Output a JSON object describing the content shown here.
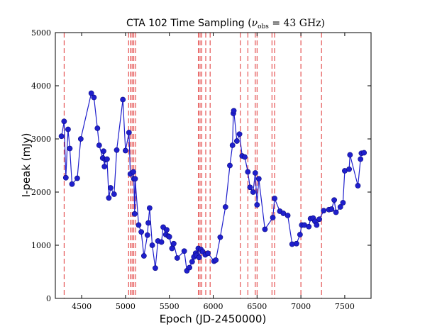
{
  "chart_data": {
    "type": "line",
    "title_prefix": "CTA 102 Time Sampling (",
    "title_symbol": "ν",
    "title_sub": "obs",
    "title_suffix": " = 43 GHz)",
    "xlabel": "Epoch (JD-2450000)",
    "ylabel": "I-peak (mJy)",
    "xlim": [
      4200,
      7800
    ],
    "ylim": [
      0,
      5000
    ],
    "xticks": [
      4500,
      5000,
      5500,
      6000,
      6500,
      7000,
      7500
    ],
    "yticks": [
      0,
      1000,
      2000,
      3000,
      4000,
      5000
    ],
    "grid": false,
    "series_color": "#1f1fcc",
    "vline_color": "#e03030",
    "vlines": [
      4300,
      5035,
      5055,
      5075,
      5095,
      5115,
      5830,
      5850,
      5870,
      5915,
      5965,
      6310,
      6395,
      6480,
      6500,
      6670,
      6700,
      7000,
      7235
    ],
    "series": [
      {
        "name": "I-peak",
        "x": [
          4270,
          4300,
          4320,
          4345,
          4365,
          4390,
          4450,
          4490,
          4610,
          4640,
          4680,
          4700,
          4740,
          4750,
          4760,
          4770,
          4790,
          4810,
          4830,
          4870,
          4900,
          4970,
          5000,
          5040,
          5055,
          5090,
          5095,
          5105,
          5110,
          5150,
          5180,
          5210,
          5250,
          5260,
          5275,
          5305,
          5340,
          5370,
          5410,
          5430,
          5460,
          5470,
          5490,
          5500,
          5530,
          5550,
          5590,
          5670,
          5700,
          5730,
          5760,
          5780,
          5800,
          5810,
          5830,
          5840,
          5860,
          5880,
          5910,
          5940,
          6010,
          6030,
          6080,
          6140,
          6190,
          6220,
          6230,
          6235,
          6270,
          6300,
          6330,
          6360,
          6395,
          6420,
          6455,
          6480,
          6500,
          6520,
          6590,
          6680,
          6700,
          6760,
          6800,
          6850,
          6900,
          6950,
          6990,
          7010,
          7040,
          7090,
          7110,
          7140,
          7160,
          7180,
          7210,
          7260,
          7320,
          7350,
          7380,
          7400,
          7450,
          7480,
          7500,
          7550,
          7560,
          7650,
          7680,
          7690,
          7720
        ],
        "y": [
          3050,
          3330,
          2270,
          3180,
          2820,
          2150,
          2260,
          3000,
          3860,
          3780,
          3200,
          2880,
          2640,
          2770,
          2480,
          2610,
          2620,
          1890,
          2080,
          1960,
          2790,
          3740,
          2780,
          3120,
          2340,
          2380,
          2250,
          1590,
          2250,
          1380,
          1250,
          800,
          1190,
          1420,
          1700,
          1000,
          570,
          1080,
          1060,
          1340,
          1200,
          1290,
          1170,
          1160,
          940,
          1030,
          760,
          890,
          520,
          580,
          690,
          780,
          850,
          810,
          940,
          770,
          920,
          880,
          820,
          850,
          700,
          720,
          1150,
          1720,
          2500,
          2880,
          3480,
          3530,
          2960,
          3090,
          2680,
          2660,
          2380,
          2090,
          2000,
          2360,
          1760,
          2250,
          1300,
          1520,
          1880,
          1640,
          1600,
          1560,
          1020,
          1030,
          1200,
          1380,
          1380,
          1350,
          1500,
          1510,
          1450,
          1380,
          1490,
          1650,
          1670,
          1680,
          1850,
          1620,
          1720,
          1800,
          2400,
          2430,
          2700,
          2120,
          2620,
          2730,
          2740
        ]
      }
    ]
  }
}
